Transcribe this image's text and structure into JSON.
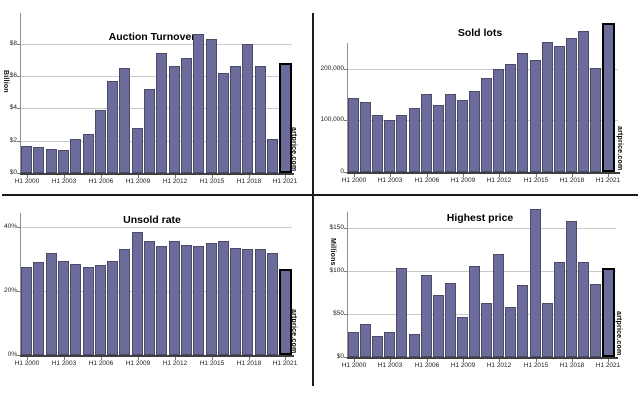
{
  "watermark": "artprice.com",
  "colors": {
    "bar_fill": "#6b6b9c",
    "bar_border": "#4b4b68",
    "highlight_border": "#000000",
    "gridline": "#c9c9c9",
    "axis": "#3f3f3f"
  },
  "chart_data": [
    {
      "id": "auction-turnover",
      "type": "bar",
      "title": "Auction Turnover",
      "xlabel": "",
      "ylabel": "Billion",
      "ylim": [
        0,
        9
      ],
      "grid": true,
      "legend": "none",
      "highlight_last": true,
      "years": [
        "H1 2000",
        "H1 2001",
        "H1 2002",
        "H1 2003",
        "H1 2004",
        "H1 2005",
        "H1 2006",
        "H1 2007",
        "H1 2008",
        "H1 2009",
        "H1 2010",
        "H1 2011",
        "H1 2012",
        "H1 2013",
        "H1 2014",
        "H1 2015",
        "H1 2016",
        "H1 2017",
        "H1 2018",
        "H1 2019",
        "H1 2020",
        "H1 2021"
      ],
      "values": [
        1.7,
        1.6,
        1.5,
        1.4,
        2.1,
        2.4,
        3.9,
        5.7,
        6.5,
        2.8,
        5.2,
        7.4,
        6.6,
        7.1,
        8.6,
        8.3,
        6.2,
        6.6,
        8.0,
        6.6,
        2.1,
        6.8
      ],
      "yticks": [
        {
          "v": 0,
          "label": "$0"
        },
        {
          "v": 2,
          "label": "$2"
        },
        {
          "v": 4,
          "label": "$4"
        },
        {
          "v": 6,
          "label": "$6"
        },
        {
          "v": 8,
          "label": "$8"
        }
      ],
      "xticks": [
        "H1 2000",
        "H1 2003",
        "H1 2006",
        "H1 2009",
        "H1 2012",
        "H1 2015",
        "H1 2018",
        "H1 2021"
      ]
    },
    {
      "id": "sold-lots",
      "type": "bar",
      "title": "Sold lots",
      "xlabel": "",
      "ylabel": "",
      "ylim": [
        0,
        300000
      ],
      "grid": true,
      "legend": "none",
      "highlight_last": true,
      "years": [
        "H1 2000",
        "H1 2001",
        "H1 2002",
        "H1 2003",
        "H1 2004",
        "H1 2005",
        "H1 2006",
        "H1 2007",
        "H1 2008",
        "H1 2009",
        "H1 2010",
        "H1 2011",
        "H1 2012",
        "H1 2013",
        "H1 2014",
        "H1 2015",
        "H1 2016",
        "H1 2017",
        "H1 2018",
        "H1 2019",
        "H1 2020",
        "H1 2021"
      ],
      "values": [
        143000,
        136000,
        111000,
        100000,
        111000,
        124000,
        151000,
        129000,
        150000,
        139000,
        157000,
        181000,
        199000,
        208000,
        231000,
        216000,
        252000,
        243000,
        260000,
        273000,
        201000,
        289000
      ],
      "yticks": [
        {
          "v": 0,
          "label": "0"
        },
        {
          "v": 100000,
          "label": "100,000"
        },
        {
          "v": 200000,
          "label": "200,000"
        }
      ],
      "xticks": [
        "H1 2000",
        "H1 2003",
        "H1 2006",
        "H1 2009",
        "H1 2012",
        "H1 2015",
        "H1 2018",
        "H1 2021"
      ]
    },
    {
      "id": "unsold-rate",
      "type": "bar",
      "title": "Unsold rate",
      "xlabel": "",
      "ylabel": "",
      "ylim": [
        0,
        44
      ],
      "grid": true,
      "legend": "none",
      "highlight_last": true,
      "years": [
        "H1 2000",
        "H1 2001",
        "H1 2002",
        "H1 2003",
        "H1 2004",
        "H1 2005",
        "H1 2006",
        "H1 2007",
        "H1 2008",
        "H1 2009",
        "H1 2010",
        "H1 2011",
        "H1 2012",
        "H1 2013",
        "H1 2014",
        "H1 2015",
        "H1 2016",
        "H1 2017",
        "H1 2018",
        "H1 2019",
        "H1 2020",
        "H1 2021"
      ],
      "values": [
        27.5,
        29,
        32,
        29.5,
        28.5,
        27.5,
        28,
        29.5,
        33,
        38.5,
        35.5,
        34,
        35.5,
        34.5,
        34,
        35,
        35.5,
        33.5,
        33,
        33,
        32,
        27
      ],
      "yticks": [
        {
          "v": 0,
          "label": "0%"
        },
        {
          "v": 20,
          "label": "20%"
        },
        {
          "v": 40,
          "label": "40%"
        }
      ],
      "xticks": [
        "H1 2000",
        "H1 2003",
        "H1 2006",
        "H1 2009",
        "H1 2012",
        "H1 2015",
        "H1 2018",
        "H1 2021"
      ]
    },
    {
      "id": "highest-price",
      "type": "bar",
      "title": "Highest price",
      "xlabel": "",
      "ylabel": "Millions",
      "ylim": [
        0,
        175
      ],
      "grid": true,
      "legend": "none",
      "highlight_last": true,
      "years": [
        "H1 2000",
        "H1 2001",
        "H1 2002",
        "H1 2003",
        "H1 2004",
        "H1 2005",
        "H1 2006",
        "H1 2007",
        "H1 2008",
        "H1 2009",
        "H1 2010",
        "H1 2011",
        "H1 2012",
        "H1 2013",
        "H1 2014",
        "H1 2015",
        "H1 2016",
        "H1 2017",
        "H1 2018",
        "H1 2019",
        "H1 2020",
        "H1 2021"
      ],
      "values": [
        29,
        38,
        24,
        29,
        104,
        27,
        95,
        72,
        86,
        46,
        106,
        63,
        120,
        58,
        84,
        172,
        63,
        110,
        158,
        110,
        85,
        103
      ],
      "yticks": [
        {
          "v": 0,
          "label": "$0"
        },
        {
          "v": 50,
          "label": "$50"
        },
        {
          "v": 100,
          "label": "$100"
        },
        {
          "v": 150,
          "label": "$150"
        }
      ],
      "xticks": [
        "H1 2000",
        "H1 2003",
        "H1 2006",
        "H1 2009",
        "H1 2012",
        "H1 2015",
        "H1 2018",
        "H1 2021"
      ]
    }
  ]
}
